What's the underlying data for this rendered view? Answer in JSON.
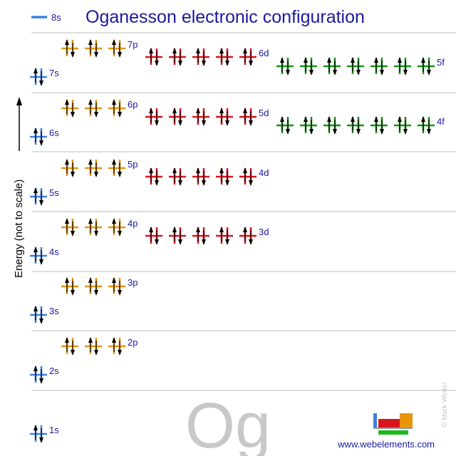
{
  "header": {
    "title": "Oganesson electronic configuration",
    "legend_label": "8s"
  },
  "axis": {
    "label": "Energy (not to scale)"
  },
  "element_symbol": "Og",
  "footer": {
    "copyright": "© Mark Winter",
    "website": "www.webelements.com"
  },
  "colors": {
    "s": "#3d7fe0",
    "p": "#e8950c",
    "d": "#d8141e",
    "f": "#169116",
    "title": "#1a1a9e",
    "label": "#1a1a9e",
    "divider": "#bbbbbb",
    "symbol": "#c8c8c8",
    "arrow": "#000000",
    "logo_green": "#1cb81c",
    "logo_gray": "#999999"
  },
  "orbitals": [
    {
      "label": "1s",
      "type": "s",
      "boxes": 1,
      "electrons": 2
    },
    {
      "label": "2s",
      "type": "s",
      "boxes": 1,
      "electrons": 2
    },
    {
      "label": "2p",
      "type": "p",
      "boxes": 3,
      "electrons": 6
    },
    {
      "label": "3s",
      "type": "s",
      "boxes": 1,
      "electrons": 2
    },
    {
      "label": "3p",
      "type": "p",
      "boxes": 3,
      "electrons": 6
    },
    {
      "label": "4s",
      "type": "s",
      "boxes": 1,
      "electrons": 2
    },
    {
      "label": "3d",
      "type": "d",
      "boxes": 5,
      "electrons": 10
    },
    {
      "label": "4p",
      "type": "p",
      "boxes": 3,
      "electrons": 6
    },
    {
      "label": "5s",
      "type": "s",
      "boxes": 1,
      "electrons": 2
    },
    {
      "label": "4d",
      "type": "d",
      "boxes": 5,
      "electrons": 10
    },
    {
      "label": "5p",
      "type": "p",
      "boxes": 3,
      "electrons": 6
    },
    {
      "label": "6s",
      "type": "s",
      "boxes": 1,
      "electrons": 2
    },
    {
      "label": "4f",
      "type": "f",
      "boxes": 7,
      "electrons": 14
    },
    {
      "label": "5d",
      "type": "d",
      "boxes": 5,
      "electrons": 10
    },
    {
      "label": "6p",
      "type": "p",
      "boxes": 3,
      "electrons": 6
    },
    {
      "label": "7s",
      "type": "s",
      "boxes": 1,
      "electrons": 2
    },
    {
      "label": "5f",
      "type": "f",
      "boxes": 7,
      "electrons": 14
    },
    {
      "label": "6d",
      "type": "d",
      "boxes": 5,
      "electrons": 10
    },
    {
      "label": "7p",
      "type": "p",
      "boxes": 3,
      "electrons": 6
    }
  ]
}
